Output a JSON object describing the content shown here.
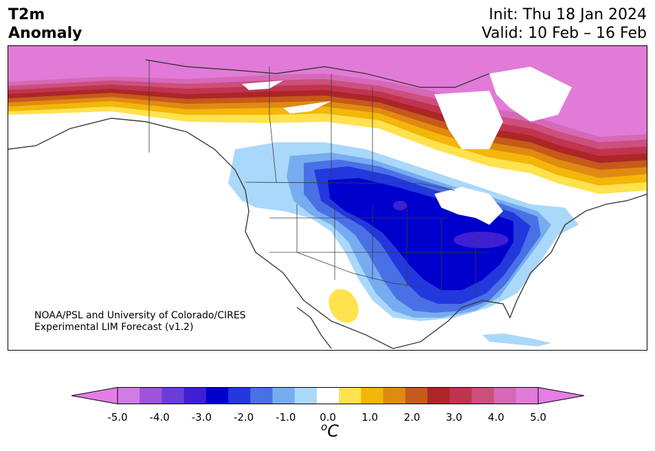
{
  "header": {
    "title_line1": "T2m",
    "title_line2": "Anomaly",
    "init": "Init: Thu 18 Jan 2024",
    "valid": "Valid: 10 Feb – 16 Feb"
  },
  "map": {
    "credit_line1": "NOAA/PSL and University of Colorado/CIRES",
    "credit_line2": "Experimental LIM Forecast (v1.2)"
  },
  "colorbar": {
    "unit_base": "C",
    "unit_sup": "o",
    "ticks": [
      "-5.0",
      "-4.0",
      "-3.0",
      "-2.0",
      "-1.0",
      "0.0",
      "1.0",
      "2.0",
      "3.0",
      "4.0",
      "5.0"
    ],
    "colors": [
      "#d27be6",
      "#9d52dc",
      "#6a3cdc",
      "#3e1fd2",
      "#0000cd",
      "#2238dc",
      "#4a70e6",
      "#76acf0",
      "#aad8fa",
      "#ffffff",
      "#ffe24e",
      "#f4b60a",
      "#e08a12",
      "#c65a1a",
      "#ac2626",
      "#c03450",
      "#cc4f7c",
      "#d768b8",
      "#e27ad8"
    ],
    "under_color": "#e47ee6",
    "over_color": "#e47ee6"
  }
}
